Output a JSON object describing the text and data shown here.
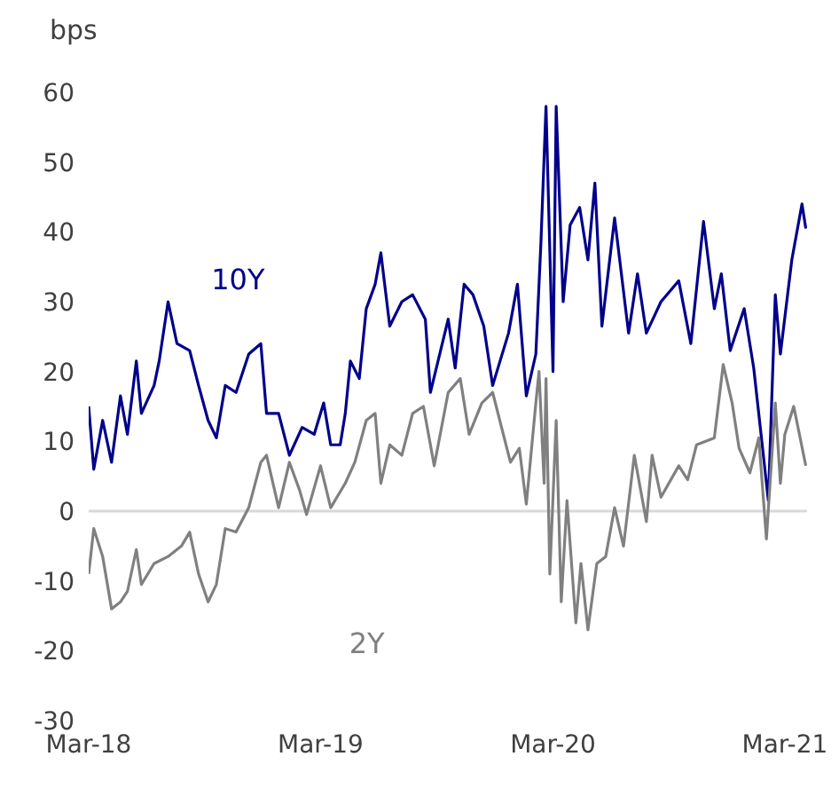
{
  "chart_data": {
    "type": "line",
    "ylabel": "bps",
    "marker": "none",
    "legend": false,
    "xlim": [
      "2018-03-01",
      "2021-04-05"
    ],
    "xticks": [
      {
        "value": "2018-03-01",
        "label": "Mar-18"
      },
      {
        "value": "2019-03-01",
        "label": "Mar-19"
      },
      {
        "value": "2020-03-01",
        "label": "Mar-20"
      },
      {
        "value": "2021-03-01",
        "label": "Mar-21"
      }
    ],
    "ylim": [
      -30,
      60
    ],
    "yticks": [
      -30,
      -20,
      -10,
      0,
      10,
      20,
      30,
      40,
      50,
      60
    ],
    "ref_lines": [
      {
        "axis": "y",
        "value": 0,
        "color": "#d9d9d9"
      }
    ],
    "series": [
      {
        "name": "10Y",
        "color": "#00008b",
        "x": [
          "2018-03-01",
          "2018-03-09",
          "2018-03-23",
          "2018-04-06",
          "2018-04-20",
          "2018-05-01",
          "2018-05-15",
          "2018-05-23",
          "2018-06-12",
          "2018-06-20",
          "2018-07-04",
          "2018-07-18",
          "2018-08-07",
          "2018-08-21",
          "2018-09-05",
          "2018-09-18",
          "2018-10-02",
          "2018-10-19",
          "2018-11-08",
          "2018-11-27",
          "2018-12-06",
          "2018-12-25",
          "2019-01-11",
          "2019-01-31",
          "2019-02-19",
          "2019-03-06",
          "2019-03-17",
          "2019-04-01",
          "2019-04-09",
          "2019-04-17",
          "2019-05-01",
          "2019-05-12",
          "2019-05-26",
          "2019-06-04",
          "2019-06-18",
          "2019-07-07",
          "2019-07-24",
          "2019-08-13",
          "2019-08-21",
          "2019-09-18",
          "2019-09-29",
          "2019-10-13",
          "2019-10-27",
          "2019-11-13",
          "2019-11-27",
          "2019-12-22",
          "2020-01-05",
          "2020-01-19",
          "2020-02-03",
          "2020-02-11",
          "2020-02-19",
          "2020-03-01",
          "2020-03-06",
          "2020-03-17",
          "2020-03-28",
          "2020-04-12",
          "2020-04-25",
          "2020-05-06",
          "2020-05-17",
          "2020-06-06",
          "2020-06-28",
          "2020-07-12",
          "2020-07-26",
          "2020-08-18",
          "2020-09-15",
          "2020-10-04",
          "2020-10-24",
          "2020-11-10",
          "2020-11-21",
          "2020-12-05",
          "2020-12-27",
          "2021-01-11",
          "2021-01-25",
          "2021-02-03",
          "2021-02-14",
          "2021-02-22",
          "2021-03-12",
          "2021-03-28",
          "2021-04-03"
        ],
        "values": [
          15,
          6,
          13,
          7,
          16.5,
          11,
          21.5,
          14,
          18,
          21.5,
          30,
          24,
          23,
          18,
          13,
          10.5,
          18,
          17,
          22.5,
          24,
          14,
          14,
          8,
          12,
          11,
          15.5,
          9.5,
          9.5,
          14,
          21.5,
          19,
          29,
          32.5,
          37,
          26.5,
          30,
          31,
          27.5,
          17,
          27.5,
          20.5,
          32.5,
          31,
          26.5,
          18,
          25.5,
          32.5,
          16.5,
          22.5,
          38.5,
          58,
          20,
          58,
          30,
          41,
          43.5,
          36,
          47,
          26.5,
          42,
          25.5,
          34,
          25.5,
          30,
          33,
          24,
          41.5,
          29,
          34,
          23,
          29,
          20.5,
          9,
          1.5,
          31,
          22.5,
          36,
          44,
          40.5
        ]
      },
      {
        "name": "2Y",
        "color": "#808080",
        "x": [
          "2018-03-01",
          "2018-03-09",
          "2018-03-23",
          "2018-04-06",
          "2018-04-20",
          "2018-05-01",
          "2018-05-15",
          "2018-05-23",
          "2018-06-12",
          "2018-07-04",
          "2018-07-25",
          "2018-08-07",
          "2018-08-21",
          "2018-09-05",
          "2018-09-18",
          "2018-10-02",
          "2018-10-19",
          "2018-11-08",
          "2018-11-27",
          "2018-12-06",
          "2018-12-25",
          "2019-01-11",
          "2019-01-27",
          "2019-02-07",
          "2019-03-01",
          "2019-03-17",
          "2019-04-09",
          "2019-04-24",
          "2019-05-12",
          "2019-05-26",
          "2019-06-04",
          "2019-06-18",
          "2019-07-07",
          "2019-07-24",
          "2019-08-10",
          "2019-08-27",
          "2019-09-18",
          "2019-10-07",
          "2019-10-21",
          "2019-11-10",
          "2019-11-27",
          "2019-12-11",
          "2019-12-25",
          "2020-01-08",
          "2020-01-19",
          "2020-02-03",
          "2020-02-08",
          "2020-02-16",
          "2020-02-19",
          "2020-02-25",
          "2020-03-06",
          "2020-03-14",
          "2020-03-23",
          "2020-04-06",
          "2020-04-14",
          "2020-04-25",
          "2020-05-09",
          "2020-05-23",
          "2020-06-06",
          "2020-06-20",
          "2020-07-07",
          "2020-07-26",
          "2020-08-04",
          "2020-08-18",
          "2020-09-15",
          "2020-09-29",
          "2020-10-13",
          "2020-11-10",
          "2020-11-24",
          "2020-12-08",
          "2020-12-19",
          "2021-01-05",
          "2021-01-19",
          "2021-01-31",
          "2021-02-14",
          "2021-02-22",
          "2021-03-01",
          "2021-03-15",
          "2021-04-03"
        ],
        "values": [
          -9,
          -2.5,
          -6.5,
          -14,
          -13,
          -11.5,
          -5.5,
          -10.5,
          -7.5,
          -6.5,
          -5,
          -3,
          -9,
          -13,
          -10.5,
          -2.5,
          -3,
          0.5,
          7,
          8,
          0.5,
          7,
          3,
          -0.5,
          6.5,
          0.5,
          4,
          7,
          13,
          14,
          4,
          9.5,
          8,
          14,
          15,
          6.5,
          17,
          19,
          11,
          15.5,
          17,
          12,
          7,
          9,
          1,
          15.5,
          20,
          4,
          19,
          -9,
          13,
          -13,
          1.5,
          -16,
          -7.5,
          -17,
          -7.5,
          -6.5,
          0.5,
          -5,
          8,
          -1.5,
          8,
          2,
          6.5,
          4.5,
          9.5,
          10.5,
          21,
          15.5,
          9,
          5.5,
          10.5,
          -4,
          15.5,
          4,
          11,
          15,
          6.5
        ]
      }
    ]
  }
}
